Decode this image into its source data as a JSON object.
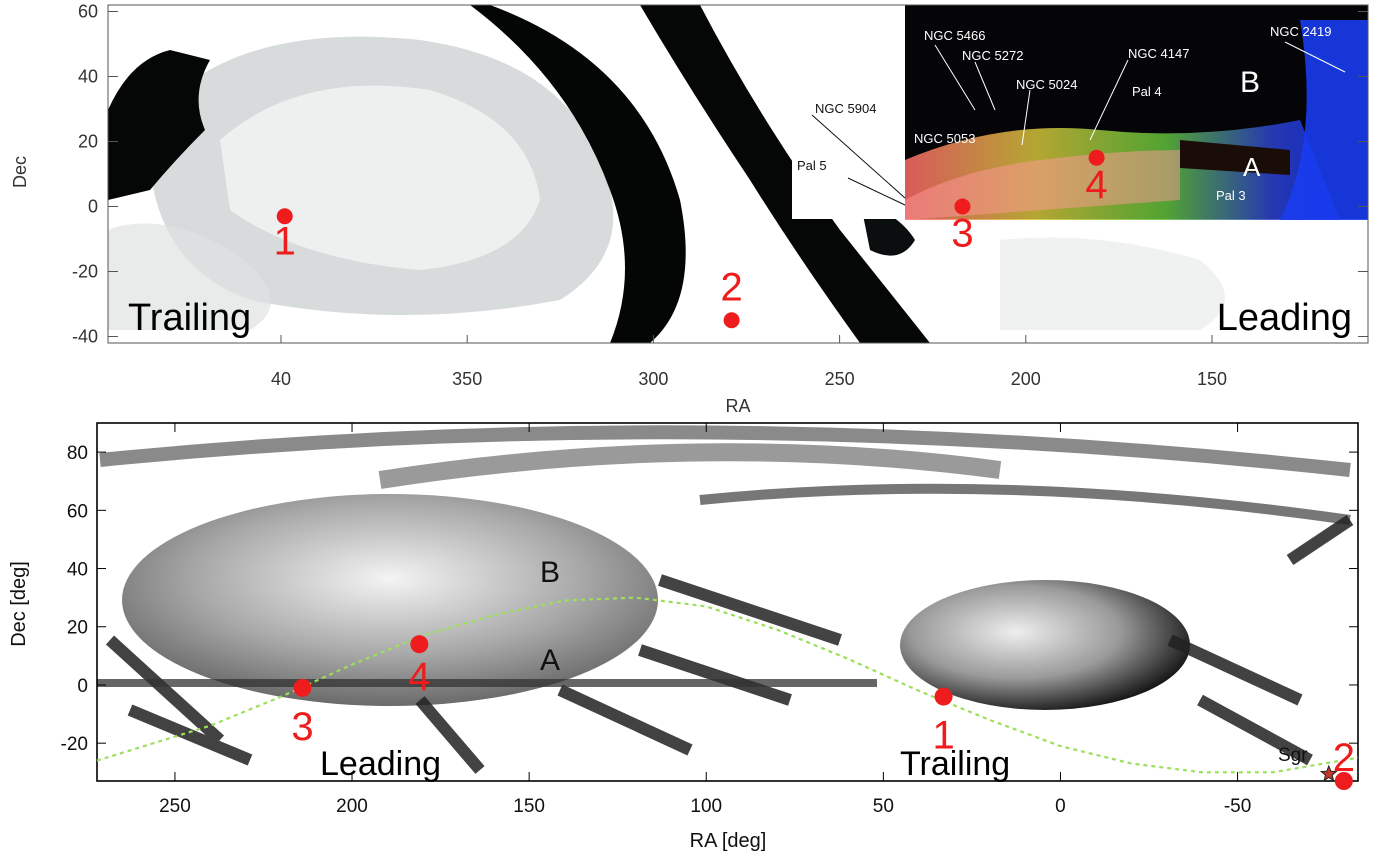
{
  "chart_data": [
    {
      "type": "scatter",
      "panel": "top",
      "xlabel": "RA",
      "ylabel": "Dec",
      "xlim": [
        58,
        108
      ],
      "ylim": [
        -42,
        62
      ],
      "x_ticks": [
        40,
        350,
        300,
        250,
        200,
        150
      ],
      "y_ticks": [
        60,
        40,
        20,
        0,
        -20,
        -40
      ],
      "points": [
        {
          "label": "1",
          "x": 39,
          "y": -3
        },
        {
          "label": "2",
          "x": 279,
          "y": -35
        },
        {
          "label": "3",
          "x": 217,
          "y": 0
        },
        {
          "label": "4",
          "x": 181,
          "y": 15
        }
      ],
      "text_labels": [
        "Trailing",
        "Leading",
        "A",
        "B"
      ],
      "inset_labels": [
        "NGC 5466",
        "NGC 5272",
        "NGC 5024",
        "NGC 4147",
        "NGC 2419",
        "NGC 5904",
        "NGC 5053",
        "Pal 4",
        "Pal 5",
        "Pal 3"
      ],
      "grid": false
    },
    {
      "type": "scatter",
      "panel": "bottom",
      "xlabel": "RA [deg]",
      "ylabel": "Dec [deg]",
      "xlim": [
        272,
        -84
      ],
      "ylim": [
        -33,
        90
      ],
      "x_ticks": [
        250,
        200,
        150,
        100,
        50,
        0,
        -50
      ],
      "y_ticks": [
        80,
        60,
        40,
        20,
        0,
        -20
      ],
      "points": [
        {
          "label": "1",
          "x": 33,
          "y": -4
        },
        {
          "label": "2",
          "x": -80,
          "y": -33
        },
        {
          "label": "3",
          "x": 214,
          "y": -1
        },
        {
          "label": "4",
          "x": 181,
          "y": 14
        }
      ],
      "star_label": "Sgr",
      "stream_curve": {
        "x": [
          272,
          240,
          220,
          200,
          180,
          160,
          140,
          120,
          100,
          80,
          60,
          40,
          20,
          0,
          -20,
          -40,
          -60,
          -84
        ],
        "y": [
          -26,
          -14,
          -4,
          7,
          17,
          24,
          29,
          30,
          27,
          19,
          9,
          -2,
          -12,
          -21,
          -27,
          -30,
          -30,
          -25
        ]
      },
      "text_labels": [
        "Leading",
        "Trailing",
        "A",
        "B"
      ],
      "grid": false
    }
  ]
}
